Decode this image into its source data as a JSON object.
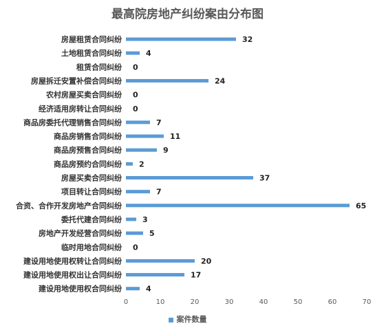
{
  "chart_data": {
    "type": "bar",
    "orientation": "horizontal",
    "title": "最高院房地产纠纷案由分布图",
    "categories": [
      "房屋租赁合同纠纷",
      "土地租赁合同纠纷",
      "租赁合同纠纷",
      "房屋拆迁安置补偿合同纠纷",
      "农村房屋买卖合同纠纷",
      "经济适用房转让合同纠纷",
      "商品房委托代理销售合同纠纷",
      "商品房销售合同纠纷",
      "商品房预售合同纠纷",
      "商品房预约合同纠纷",
      "房屋买卖合同纠纷",
      "项目转让合同纠纷",
      "合资、合作开发房地产合同纠纷",
      "委托代建合同纠纷",
      "房地产开发经营合同纠纷",
      "临时用地合同纠纷",
      "建设用地使用权转让合同纠纷",
      "建设用地使用权出让合同纠纷",
      "建设用地使用权合同纠纷"
    ],
    "series": [
      {
        "name": "案件数量",
        "values": [
          32,
          4,
          0,
          24,
          0,
          0,
          7,
          11,
          9,
          2,
          37,
          7,
          65,
          3,
          5,
          0,
          20,
          17,
          4
        ]
      }
    ],
    "xlim": [
      0,
      70
    ],
    "xticks": [
      0,
      10,
      20,
      30,
      40,
      50,
      60,
      70
    ],
    "grid": false,
    "data_labels": true,
    "legend_position": "bottom",
    "bar_color": "#5b9bd5"
  }
}
